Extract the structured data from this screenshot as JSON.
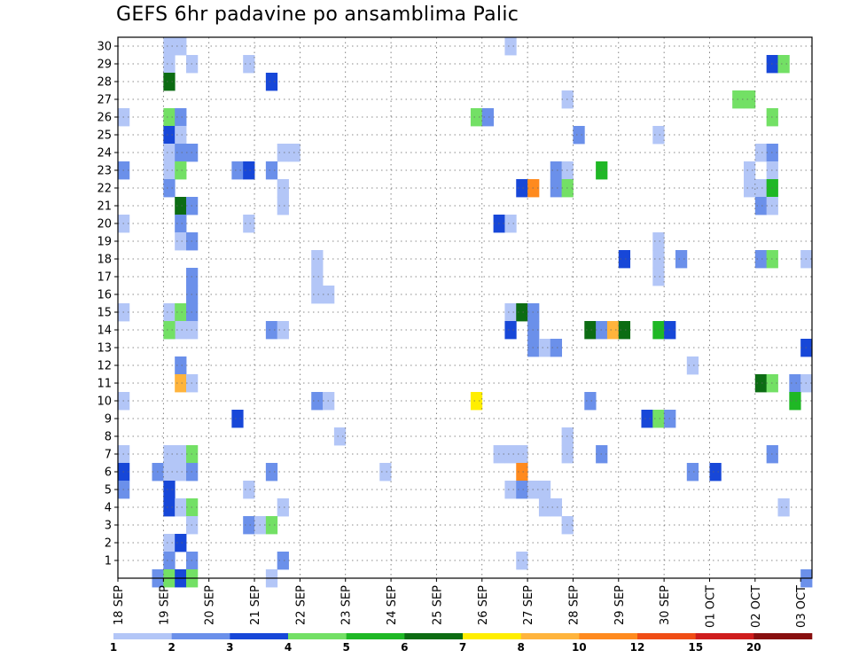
{
  "chart_data": {
    "type": "heatmap",
    "title": "GEFS 6hr padavine po ansamblima Palic",
    "xlabel": "",
    "ylabel": "",
    "x_tick_labels": [
      "18 SEP",
      "19 SEP",
      "20 SEP",
      "21 SEP",
      "22 SEP",
      "23 SEP",
      "24 SEP",
      "25 SEP",
      "26 SEP",
      "27 SEP",
      "28 SEP",
      "29 SEP",
      "30 SEP",
      "01 OCT",
      "02 OCT",
      "03 OCT"
    ],
    "x_range_steps": [
      0,
      61
    ],
    "y_tick_labels": [
      "1",
      "2",
      "3",
      "4",
      "5",
      "6",
      "7",
      "8",
      "9",
      "10",
      "11",
      "12",
      "13",
      "14",
      "15",
      "16",
      "17",
      "18",
      "19",
      "20",
      "21",
      "22",
      "23",
      "24",
      "25",
      "26",
      "27",
      "28",
      "29",
      "30"
    ],
    "y_range": [
      0,
      30
    ],
    "grid": true,
    "colorbar": {
      "labels": [
        "1",
        "2",
        "3",
        "4",
        "5",
        "6",
        "7",
        "8",
        "10",
        "12",
        "15",
        "20"
      ],
      "colors": [
        "#b3c6f7",
        "#6b90ea",
        "#1747d8",
        "#73e065",
        "#1fb825",
        "#0c6c13",
        "#ffee00",
        "#ffb43c",
        "#ff8a1e",
        "#f04d15",
        "#cf1d1d",
        "#880f0f"
      ]
    },
    "cells": [
      [
        4,
        30,
        1
      ],
      [
        5,
        30,
        1
      ],
      [
        34,
        30,
        1
      ],
      [
        4,
        29,
        1
      ],
      [
        6,
        29,
        1
      ],
      [
        11,
        29,
        1
      ],
      [
        57,
        29,
        3
      ],
      [
        58,
        29,
        4
      ],
      [
        4,
        28,
        6
      ],
      [
        13,
        28,
        3
      ],
      [
        39,
        27,
        1
      ],
      [
        54,
        27,
        4
      ],
      [
        55,
        27,
        4
      ],
      [
        0,
        26,
        1
      ],
      [
        4,
        26,
        4
      ],
      [
        5,
        26,
        2
      ],
      [
        31,
        26,
        4
      ],
      [
        32,
        26,
        2
      ],
      [
        57,
        26,
        4
      ],
      [
        4,
        25,
        3
      ],
      [
        5,
        25,
        1
      ],
      [
        40,
        25,
        2
      ],
      [
        47,
        25,
        1
      ],
      [
        4,
        24,
        1
      ],
      [
        5,
        24,
        2
      ],
      [
        6,
        24,
        2
      ],
      [
        14,
        24,
        1
      ],
      [
        15,
        24,
        1
      ],
      [
        56,
        24,
        1
      ],
      [
        57,
        24,
        2
      ],
      [
        0,
        23,
        2
      ],
      [
        4,
        23,
        1
      ],
      [
        5,
        23,
        4
      ],
      [
        10,
        23,
        2
      ],
      [
        11,
        23,
        3
      ],
      [
        13,
        23,
        2
      ],
      [
        38,
        23,
        2
      ],
      [
        39,
        23,
        1
      ],
      [
        42,
        23,
        5
      ],
      [
        55,
        23,
        1
      ],
      [
        57,
        23,
        1
      ],
      [
        4,
        22,
        2
      ],
      [
        35,
        22,
        3
      ],
      [
        36,
        22,
        9
      ],
      [
        38,
        22,
        2
      ],
      [
        39,
        22,
        4
      ],
      [
        14,
        22,
        1
      ],
      [
        55,
        22,
        1
      ],
      [
        56,
        22,
        1
      ],
      [
        57,
        22,
        5
      ],
      [
        5,
        21,
        6
      ],
      [
        6,
        21,
        2
      ],
      [
        14,
        21,
        1
      ],
      [
        56,
        21,
        2
      ],
      [
        57,
        21,
        1
      ],
      [
        0,
        20,
        1
      ],
      [
        5,
        20,
        2
      ],
      [
        11,
        20,
        1
      ],
      [
        33,
        20,
        3
      ],
      [
        34,
        20,
        1
      ],
      [
        5,
        19,
        1
      ],
      [
        6,
        19,
        2
      ],
      [
        47,
        19,
        1
      ],
      [
        17,
        18,
        1
      ],
      [
        44,
        18,
        3
      ],
      [
        47,
        18,
        1
      ],
      [
        49,
        18,
        2
      ],
      [
        56,
        18,
        2
      ],
      [
        57,
        18,
        4
      ],
      [
        60,
        18,
        1
      ],
      [
        17,
        17,
        1
      ],
      [
        6,
        17,
        2
      ],
      [
        47,
        17,
        1
      ],
      [
        17,
        16,
        1
      ],
      [
        18,
        16,
        1
      ],
      [
        6,
        16,
        2
      ],
      [
        0,
        15,
        1
      ],
      [
        4,
        15,
        1
      ],
      [
        5,
        15,
        4
      ],
      [
        6,
        15,
        2
      ],
      [
        34,
        15,
        1
      ],
      [
        35,
        15,
        6
      ],
      [
        36,
        15,
        2
      ],
      [
        5,
        14,
        1
      ],
      [
        6,
        14,
        1
      ],
      [
        4,
        14,
        1
      ],
      [
        34,
        14,
        3
      ],
      [
        36,
        14,
        2
      ],
      [
        13,
        14,
        2
      ],
      [
        14,
        14,
        1
      ],
      [
        41,
        14,
        6
      ],
      [
        42,
        14,
        2
      ],
      [
        43,
        14,
        8
      ],
      [
        44,
        14,
        6
      ],
      [
        47,
        14,
        5
      ],
      [
        48,
        14,
        3
      ],
      [
        4,
        14,
        4
      ],
      [
        36,
        13,
        2
      ],
      [
        37,
        13,
        1
      ],
      [
        38,
        13,
        2
      ],
      [
        60,
        13,
        3
      ],
      [
        50,
        12,
        1
      ],
      [
        5,
        12,
        2
      ],
      [
        5,
        11,
        8
      ],
      [
        6,
        11,
        1
      ],
      [
        56,
        11,
        6
      ],
      [
        57,
        11,
        4
      ],
      [
        59,
        11,
        2
      ],
      [
        60,
        11,
        1
      ],
      [
        0,
        10,
        1
      ],
      [
        17,
        10,
        2
      ],
      [
        18,
        10,
        1
      ],
      [
        31,
        10,
        7
      ],
      [
        41,
        10,
        2
      ],
      [
        59,
        10,
        5
      ],
      [
        10,
        9,
        3
      ],
      [
        46,
        9,
        3
      ],
      [
        47,
        9,
        4
      ],
      [
        48,
        9,
        2
      ],
      [
        19,
        8,
        1
      ],
      [
        39,
        8,
        1
      ],
      [
        0,
        7,
        1
      ],
      [
        4,
        7,
        1
      ],
      [
        5,
        7,
        1
      ],
      [
        6,
        7,
        4
      ],
      [
        33,
        7,
        1
      ],
      [
        34,
        7,
        1
      ],
      [
        35,
        7,
        1
      ],
      [
        39,
        7,
        1
      ],
      [
        42,
        7,
        2
      ],
      [
        57,
        7,
        2
      ],
      [
        0,
        6,
        3
      ],
      [
        3,
        6,
        2
      ],
      [
        4,
        6,
        1
      ],
      [
        5,
        6,
        1
      ],
      [
        6,
        6,
        2
      ],
      [
        13,
        6,
        2
      ],
      [
        23,
        6,
        1
      ],
      [
        35,
        6,
        9
      ],
      [
        50,
        6,
        2
      ],
      [
        52,
        6,
        3
      ],
      [
        0,
        5,
        2
      ],
      [
        4,
        5,
        3
      ],
      [
        11,
        5,
        1
      ],
      [
        34,
        5,
        1
      ],
      [
        35,
        5,
        2
      ],
      [
        36,
        5,
        1
      ],
      [
        37,
        5,
        1
      ],
      [
        4,
        4,
        3
      ],
      [
        5,
        4,
        1
      ],
      [
        6,
        4,
        4
      ],
      [
        14,
        4,
        1
      ],
      [
        37,
        4,
        1
      ],
      [
        38,
        4,
        1
      ],
      [
        58,
        4,
        1
      ],
      [
        6,
        3,
        1
      ],
      [
        11,
        3,
        2
      ],
      [
        12,
        3,
        1
      ],
      [
        13,
        3,
        4
      ],
      [
        39,
        3,
        1
      ],
      [
        4,
        2,
        1
      ],
      [
        5,
        2,
        3
      ],
      [
        4,
        1,
        2
      ],
      [
        6,
        1,
        2
      ],
      [
        14,
        1,
        2
      ],
      [
        35,
        1,
        1
      ],
      [
        3,
        0,
        2
      ],
      [
        4,
        0,
        4
      ],
      [
        5,
        0,
        3
      ],
      [
        6,
        0,
        4
      ],
      [
        13,
        0,
        1
      ],
      [
        60,
        0,
        2
      ]
    ]
  }
}
